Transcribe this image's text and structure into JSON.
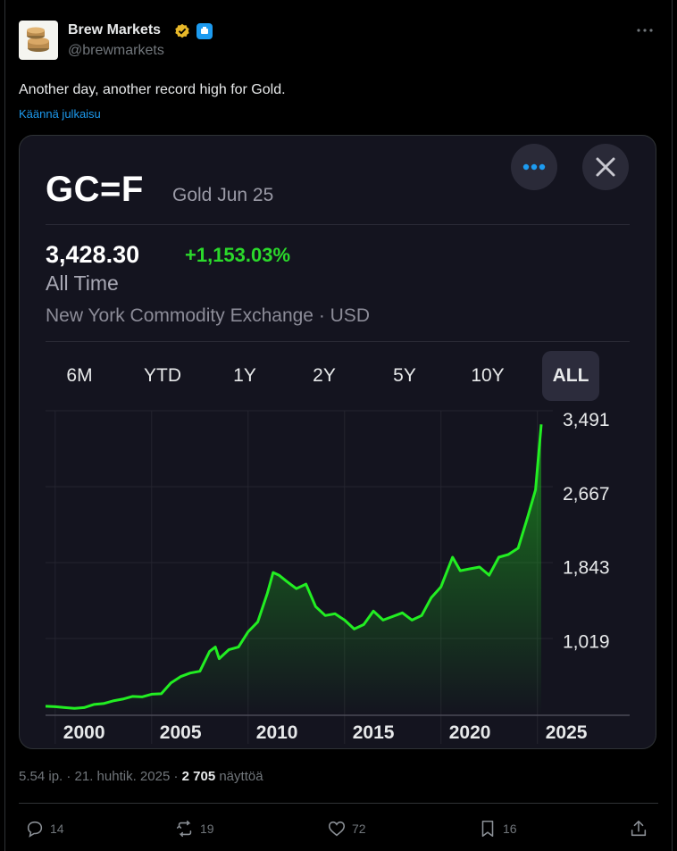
{
  "author": {
    "name": "Brew Markets",
    "handle": "@brewmarkets"
  },
  "tweet": {
    "text": "Another day, another record high for Gold.",
    "translate_label": "Käännä julkaisu"
  },
  "card": {
    "ticker": "GC=F",
    "contract": "Gold Jun 25",
    "price": "3,428.30",
    "change": "+1,153.03%",
    "period": "All Time",
    "exchange": "New York Commodity Exchange · USD",
    "ranges": [
      "6M",
      "YTD",
      "1Y",
      "2Y",
      "5Y",
      "10Y",
      "ALL"
    ],
    "active_range": "ALL",
    "colors": {
      "line": "#22ee22",
      "positive": "#2bd92b",
      "background": "#14141f"
    }
  },
  "chart_data": {
    "type": "area",
    "x": [
      1999.5,
      2000,
      2000.5,
      2001,
      2001.5,
      2002,
      2002.5,
      2003,
      2003.5,
      2004,
      2004.5,
      2005,
      2005.5,
      2006,
      2006.5,
      2007,
      2007.5,
      2008,
      2008.3,
      2008.5,
      2009,
      2009.5,
      2010,
      2010.5,
      2011,
      2011.3,
      2011.6,
      2012,
      2012.5,
      2013,
      2013.5,
      2014,
      2014.5,
      2015,
      2015.5,
      2016,
      2016.5,
      2017,
      2017.5,
      2018,
      2018.5,
      2019,
      2019.5,
      2020,
      2020.6,
      2021,
      2021.5,
      2022,
      2022.5,
      2023,
      2023.5,
      2024,
      2024.5,
      2024.9,
      2025.2
    ],
    "values": [
      290,
      285,
      275,
      268,
      275,
      310,
      320,
      350,
      370,
      400,
      395,
      425,
      430,
      550,
      620,
      660,
      680,
      900,
      950,
      820,
      920,
      950,
      1120,
      1230,
      1550,
      1780,
      1750,
      1680,
      1600,
      1650,
      1400,
      1300,
      1320,
      1250,
      1150,
      1200,
      1350,
      1250,
      1290,
      1330,
      1250,
      1300,
      1500,
      1620,
      1950,
      1800,
      1820,
      1840,
      1750,
      1950,
      1980,
      2050,
      2400,
      2700,
      3428
    ],
    "yticks": [
      "3,491",
      "2,667",
      "1,843",
      "1,019"
    ],
    "ytick_values": [
      3491,
      2667,
      1843,
      1019
    ],
    "xticks": [
      "2000",
      "2005",
      "2010",
      "2015",
      "2020",
      "2025"
    ],
    "xtick_values": [
      2000,
      2005,
      2010,
      2015,
      2020,
      2025
    ],
    "xlim": [
      1999.5,
      2025.8
    ],
    "ylim": [
      190,
      3580
    ],
    "grid": true
  },
  "post_meta": {
    "time": "5.54 ip. · 21. huhtik. 2025 · ",
    "views": "2 705",
    "views_label": "näyttöä"
  },
  "actions": {
    "replies": "14",
    "reposts": "19",
    "likes": "72",
    "bookmarks": "16"
  }
}
